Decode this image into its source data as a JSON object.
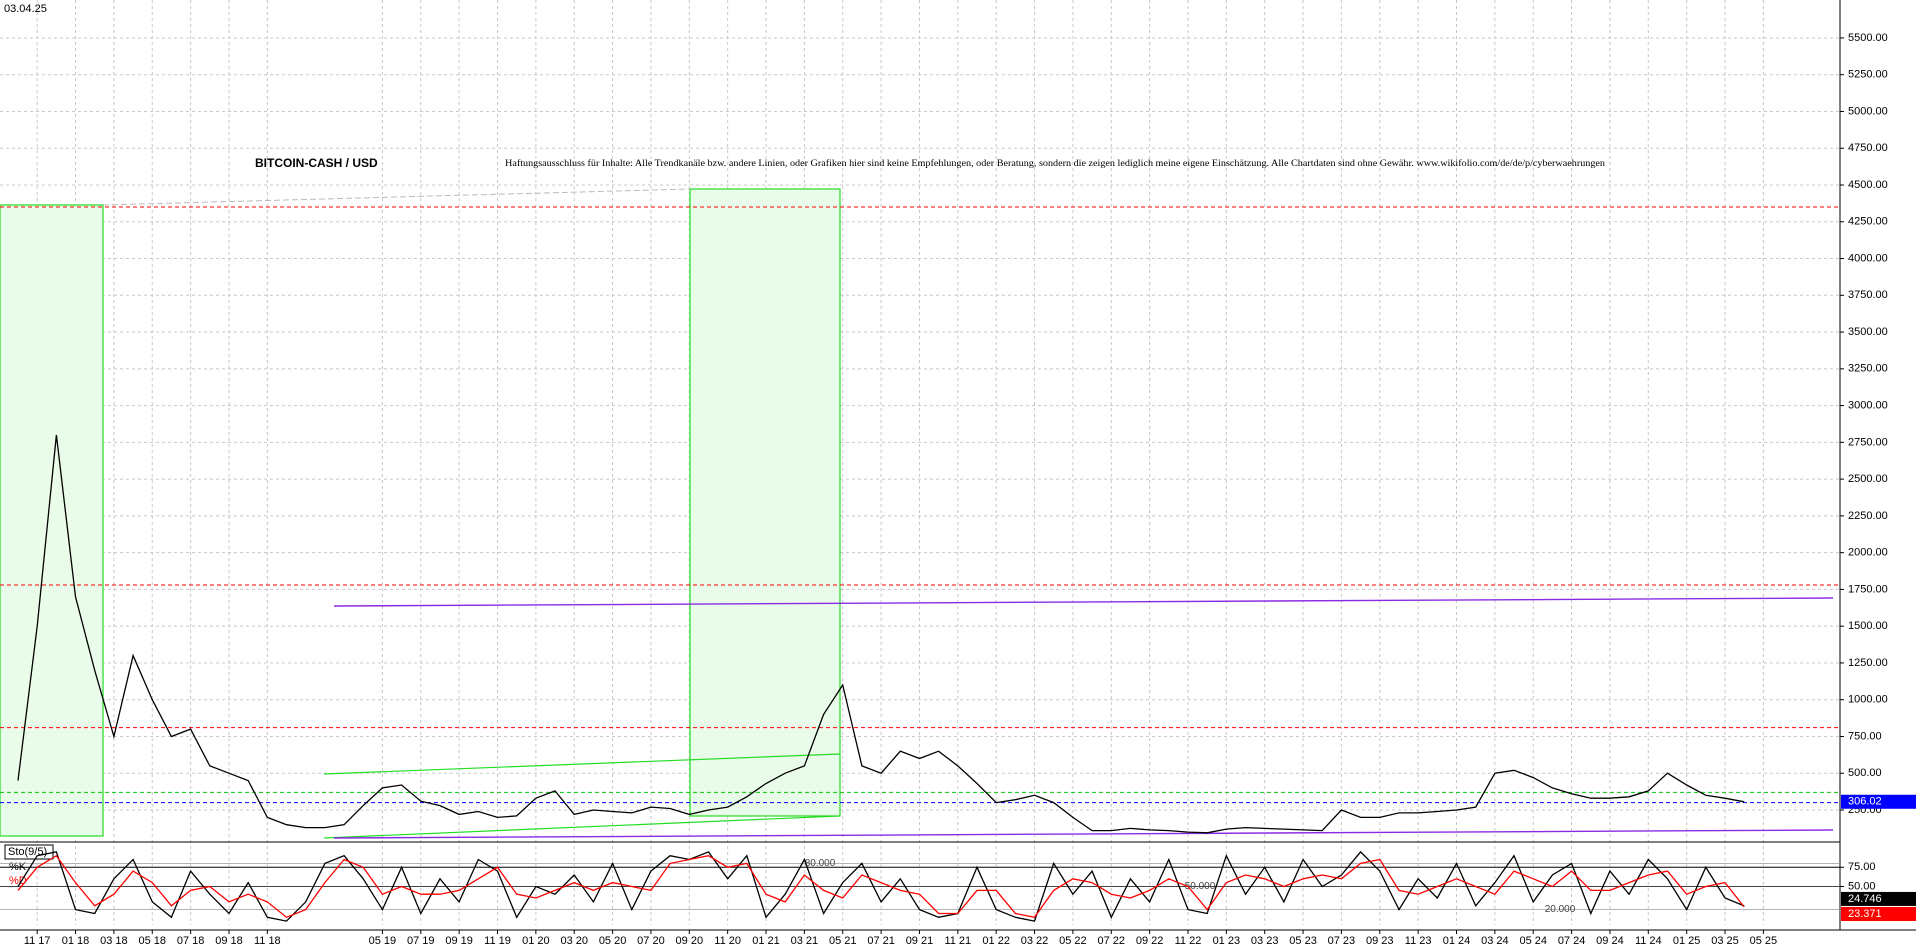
{
  "date": "03.04.25",
  "chart_data": [
    {
      "type": "line",
      "title": "BITCOIN-CASH / USD",
      "subtitle": "Haftungsausschluss für Inhalte: Alle Trendkanäle bzw. andere Linien, oder Grafiken hier sind keine Empfehlungen, oder Beratung, sondern die zeigen lediglich meine eigene Einschätzung. Alle Chartdaten sind ohne Gewähr.  www.wikifolio.com/de/de/p/cyberwaehrungen",
      "categories": [
        null,
        "11 17",
        null,
        "01 18",
        null,
        "03 18",
        null,
        "05 18",
        null,
        "07 18",
        null,
        "09 18",
        null,
        "11 18",
        null,
        null,
        null,
        null,
        null,
        "05 19",
        null,
        "07 19",
        null,
        "09 19",
        null,
        "11 19",
        null,
        "01 20",
        null,
        "03 20",
        null,
        "05 20",
        null,
        "07 20",
        null,
        "09 20",
        null,
        "11 20",
        null,
        "01 21",
        null,
        "03 21",
        null,
        "05 21",
        null,
        "07 21",
        null,
        "09 21",
        null,
        "11 21",
        null,
        "01 22",
        null,
        "03 22",
        null,
        "05 22",
        null,
        "07 22",
        null,
        "09 22",
        null,
        "11 22",
        null,
        "01 23",
        null,
        "03 23",
        null,
        "05 23",
        null,
        "07 23",
        null,
        "09 23",
        null,
        "11 23",
        null,
        "01 24",
        null,
        "03 24",
        null,
        "05 24",
        null,
        "07 24",
        null,
        "09 24",
        null,
        "11 24",
        null,
        "01 25",
        null,
        "03 25",
        null,
        "05 25"
      ],
      "values": [
        450,
        1500,
        2800,
        1700,
        1200,
        750,
        1300,
        1000,
        750,
        800,
        550,
        500,
        450,
        200,
        150,
        130,
        130,
        150,
        280,
        400,
        420,
        310,
        280,
        220,
        240,
        200,
        210,
        330,
        380,
        220,
        250,
        240,
        230,
        270,
        260,
        220,
        250,
        270,
        340,
        430,
        500,
        550,
        900,
        1100,
        550,
        500,
        650,
        600,
        650,
        550,
        430,
        300,
        320,
        350,
        300,
        200,
        110,
        110,
        125,
        115,
        110,
        100,
        95,
        120,
        130,
        125,
        120,
        115,
        110,
        250,
        200,
        200,
        230,
        230,
        240,
        250,
        270,
        500,
        520,
        470,
        400,
        360,
        330,
        330,
        340,
        380,
        500,
        420,
        350,
        330,
        306.02,
        null
      ],
      "color": "#000000",
      "ylim": [
        46,
        5758
      ],
      "yticks": [
        {
          "value": 250,
          "label": "250.00"
        },
        {
          "value": 500,
          "label": "500.00"
        },
        {
          "value": 750,
          "label": "750.00"
        },
        {
          "value": 1000,
          "label": "1000.00"
        },
        {
          "value": 1250,
          "label": "1250.00"
        },
        {
          "value": 1500,
          "label": "1500.00"
        },
        {
          "value": 1750,
          "label": "1750.00"
        },
        {
          "value": 2000,
          "label": "2000.00"
        },
        {
          "value": 2250,
          "label": "2250.00"
        },
        {
          "value": 2500,
          "label": "2500.00"
        },
        {
          "value": 2750,
          "label": "2750.00"
        },
        {
          "value": 3000,
          "label": "3000.00"
        },
        {
          "value": 3250,
          "label": "3250.00"
        },
        {
          "value": 3500,
          "label": "3500.00"
        },
        {
          "value": 3750,
          "label": "3750.00"
        },
        {
          "value": 4000,
          "label": "4000.00"
        },
        {
          "value": 4250,
          "label": "4250.00"
        },
        {
          "value": 4500,
          "label": "4500.00"
        },
        {
          "value": 4750,
          "label": "4750.00"
        },
        {
          "value": 5000,
          "label": "5000.00"
        },
        {
          "value": 5250,
          "label": "5250.00"
        },
        {
          "value": 5500,
          "label": "5500.00"
        }
      ],
      "grid": true,
      "levels": [
        {
          "value": 4350,
          "color": "#ff0000"
        },
        {
          "value": 1780,
          "color": "#ff0000"
        },
        {
          "value": 810,
          "color": "#ff0000"
        },
        {
          "value": 370,
          "color": "#00cc00"
        },
        {
          "value": 300,
          "color": "#0000ff"
        }
      ]
    },
    {
      "type": "line",
      "title": "Sto(9/5)",
      "series": [
        {
          "name": "%K",
          "color": "#000000",
          "values": [
            50,
            90,
            95,
            20,
            15,
            60,
            85,
            30,
            10,
            70,
            40,
            15,
            55,
            10,
            5,
            30,
            80,
            90,
            60,
            20,
            75,
            15,
            60,
            30,
            85,
            70,
            10,
            50,
            40,
            65,
            30,
            80,
            20,
            70,
            90,
            85,
            95,
            60,
            90,
            10,
            40,
            85,
            15,
            55,
            80,
            30,
            60,
            20,
            10,
            15,
            75,
            20,
            10,
            5,
            80,
            40,
            70,
            10,
            60,
            30,
            85,
            20,
            15,
            90,
            40,
            75,
            30,
            85,
            50,
            65,
            95,
            70,
            20,
            60,
            35,
            80,
            25,
            55,
            90,
            30,
            65,
            80,
            15,
            70,
            40,
            85,
            60,
            20,
            75,
            35,
            24.746,
            null
          ]
        },
        {
          "name": "%D",
          "color": "#ff0000",
          "values": [
            45,
            75,
            90,
            55,
            25,
            40,
            70,
            55,
            25,
            45,
            50,
            30,
            40,
            30,
            10,
            20,
            55,
            85,
            75,
            40,
            50,
            40,
            40,
            45,
            60,
            75,
            40,
            35,
            45,
            55,
            45,
            55,
            50,
            45,
            80,
            85,
            90,
            75,
            80,
            40,
            30,
            65,
            45,
            35,
            65,
            55,
            45,
            40,
            15,
            15,
            45,
            45,
            15,
            10,
            45,
            60,
            55,
            40,
            35,
            45,
            60,
            50,
            20,
            55,
            65,
            60,
            50,
            60,
            65,
            60,
            80,
            85,
            45,
            40,
            50,
            60,
            50,
            40,
            70,
            60,
            50,
            70,
            45,
            45,
            55,
            65,
            70,
            40,
            50,
            55,
            23.371,
            null
          ]
        }
      ],
      "ylim": [
        0,
        100
      ],
      "yticks": [
        {
          "value": 75,
          "label": "75.00"
        },
        {
          "value": 50,
          "label": "50.00"
        }
      ],
      "levels": [
        {
          "value": 80,
          "label": "80.000"
        },
        {
          "value": 50,
          "label": "50.000"
        },
        {
          "value": 20,
          "label": "20.000"
        }
      ]
    }
  ]
}
